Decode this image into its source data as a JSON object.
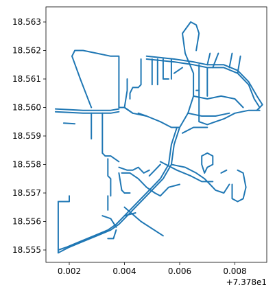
{
  "chart_data": {
    "type": "line",
    "title": "",
    "xlabel": "",
    "ylabel": "",
    "x_offset_label": "+7.378e1",
    "x_ticks": [
      "0.002",
      "0.004",
      "0.006",
      "0.008"
    ],
    "y_ticks": [
      "18.555",
      "18.556",
      "18.557",
      "18.558",
      "18.559",
      "18.560",
      "18.561",
      "18.562",
      "18.563"
    ],
    "grid": false,
    "line_color": "#1f77b4",
    "series": [
      {
        "values": [
          [
            0.0021,
            18.5618
          ],
          [
            0.0022,
            18.562
          ],
          [
            0.0025,
            18.562
          ],
          [
            0.003,
            18.5619
          ],
          [
            0.0035,
            18.5618
          ],
          [
            0.0038,
            18.5618
          ],
          [
            0.0038,
            18.56
          ]
        ]
      },
      {
        "values": [
          [
            0.0021,
            18.5618
          ],
          [
            0.0024,
            18.561
          ],
          [
            0.0026,
            18.5605
          ],
          [
            0.0028,
            18.56
          ]
        ]
      },
      {
        "values": [
          [
            0.0015,
            18.55995
          ],
          [
            0.0025,
            18.5599
          ],
          [
            0.0035,
            18.5599
          ],
          [
            0.0038,
            18.55995
          ]
        ]
      },
      {
        "values": [
          [
            0.0015,
            18.55985
          ],
          [
            0.0025,
            18.5598
          ],
          [
            0.0035,
            18.5598
          ],
          [
            0.0038,
            18.55985
          ]
        ]
      },
      {
        "values": [
          [
            0.0018,
            18.55945
          ],
          [
            0.0022,
            18.55943
          ]
        ]
      },
      {
        "values": [
          [
            0.0028,
            18.5598
          ],
          [
            0.0028,
            18.5589
          ]
        ]
      },
      {
        "values": [
          [
            0.0032,
            18.5598
          ],
          [
            0.0032,
            18.5584
          ],
          [
            0.0033,
            18.5583
          ],
          [
            0.0035,
            18.5583
          ],
          [
            0.0038,
            18.5581
          ]
        ]
      },
      {
        "values": [
          [
            0.0038,
            18.56
          ],
          [
            0.004,
            18.56
          ],
          [
            0.0043,
            18.5598
          ],
          [
            0.0048,
            18.5597
          ],
          [
            0.0053,
            18.5595
          ],
          [
            0.0057,
            18.5593
          ],
          [
            0.006,
            18.5593
          ],
          [
            0.0063,
            18.5598
          ],
          [
            0.0065,
            18.5604
          ],
          [
            0.0065,
            18.5612
          ],
          [
            0.0062,
            18.5619
          ],
          [
            0.0061,
            18.5626
          ],
          [
            0.0064,
            18.563
          ],
          [
            0.0066,
            18.5629
          ],
          [
            0.0067,
            18.5626
          ],
          [
            0.0066,
            18.562
          ]
        ]
      },
      {
        "values": [
          [
            0.004,
            18.56
          ],
          [
            0.0041,
            18.5606
          ],
          [
            0.0041,
            18.561
          ]
        ]
      },
      {
        "values": [
          [
            0.0043,
            18.5598
          ],
          [
            0.004,
            18.56
          ]
        ]
      },
      {
        "values": [
          [
            0.0048,
            18.5597
          ],
          [
            0.0045,
            18.5598
          ]
        ]
      },
      {
        "values": [
          [
            0.006,
            18.5593
          ],
          [
            0.0058,
            18.5587
          ],
          [
            0.0057,
            18.558
          ],
          [
            0.0054,
            18.5575
          ],
          [
            0.0051,
            18.5572
          ],
          [
            0.0047,
            18.5568
          ],
          [
            0.0044,
            18.5565
          ],
          [
            0.0041,
            18.5562
          ],
          [
            0.0038,
            18.5559
          ],
          [
            0.0035,
            18.5557
          ],
          [
            0.003,
            18.5555
          ],
          [
            0.0025,
            18.5553
          ],
          [
            0.002,
            18.5551
          ],
          [
            0.0016,
            18.5549
          ]
        ]
      },
      {
        "values": [
          [
            0.0059,
            18.5593
          ],
          [
            0.0057,
            18.5587
          ],
          [
            0.0056,
            18.558
          ],
          [
            0.0053,
            18.5575
          ],
          [
            0.005,
            18.5572
          ],
          [
            0.0046,
            18.5568
          ],
          [
            0.0043,
            18.5565
          ],
          [
            0.004,
            18.5562
          ],
          [
            0.0037,
            18.5559
          ],
          [
            0.0034,
            18.5557
          ],
          [
            0.0029,
            18.5555
          ],
          [
            0.0024,
            18.5553
          ],
          [
            0.0019,
            18.5551
          ],
          [
            0.0016,
            18.555
          ]
        ]
      },
      {
        "values": [
          [
            0.0016,
            18.5567
          ],
          [
            0.0016,
            18.5549
          ]
        ]
      },
      {
        "values": [
          [
            0.0016,
            18.5567
          ],
          [
            0.002,
            18.5567
          ],
          [
            0.002,
            18.5569
          ]
        ]
      },
      {
        "values": [
          [
            0.0039,
            18.5577
          ],
          [
            0.0042,
            18.5577
          ],
          [
            0.0045,
            18.5575
          ],
          [
            0.0048,
            18.5572
          ],
          [
            0.0051,
            18.557
          ],
          [
            0.0053,
            18.5569
          ],
          [
            0.0056,
            18.5572
          ],
          [
            0.006,
            18.5573
          ]
        ]
      },
      {
        "values": [
          [
            0.0038,
            18.5577
          ],
          [
            0.0039,
            18.5571
          ],
          [
            0.004,
            18.557
          ],
          [
            0.0042,
            18.557
          ]
        ]
      },
      {
        "values": [
          [
            0.0034,
            18.5582
          ],
          [
            0.0034,
            18.5576
          ],
          [
            0.0035,
            18.5575
          ],
          [
            0.0035,
            18.5569
          ]
        ]
      },
      {
        "values": [
          [
            0.0038,
            18.5579
          ],
          [
            0.0041,
            18.5578
          ],
          [
            0.0043,
            18.5578
          ],
          [
            0.0045,
            18.5579
          ],
          [
            0.0047,
            18.5577
          ],
          [
            0.0049,
            18.5578
          ]
        ]
      },
      {
        "values": [
          [
            0.0032,
            18.5562
          ],
          [
            0.0035,
            18.5561
          ],
          [
            0.0037,
            18.5558
          ]
        ]
      },
      {
        "values": [
          [
            0.0034,
            18.5554
          ],
          [
            0.0036,
            18.5554
          ],
          [
            0.0037,
            18.5557
          ]
        ]
      },
      {
        "values": [
          [
            0.0034,
            18.5569
          ],
          [
            0.0034,
            18.5564
          ]
        ]
      },
      {
        "values": [
          [
            0.004,
            18.5565
          ],
          [
            0.0046,
            18.556
          ],
          [
            0.0054,
            18.5555
          ]
        ]
      },
      {
        "values": [
          [
            0.0049,
            18.5576
          ],
          [
            0.0051,
            18.5578
          ],
          [
            0.0053,
            18.558
          ]
        ]
      },
      {
        "values": [
          [
            0.0053,
            18.5581
          ],
          [
            0.0059,
            18.5578
          ],
          [
            0.0064,
            18.5576
          ],
          [
            0.0068,
            18.5574
          ],
          [
            0.0072,
            18.5574
          ]
        ]
      },
      {
        "values": [
          [
            0.0057,
            18.558
          ],
          [
            0.0062,
            18.5579
          ],
          [
            0.0066,
            18.5577
          ],
          [
            0.0069,
            18.5575
          ],
          [
            0.0071,
            18.5573
          ],
          [
            0.0073,
            18.5571
          ],
          [
            0.0076,
            18.557
          ],
          [
            0.0078,
            18.5573
          ]
        ]
      },
      {
        "values": [
          [
            0.0069,
            18.5577
          ],
          [
            0.0068,
            18.558
          ],
          [
            0.0068,
            18.5583
          ],
          [
            0.007,
            18.5584
          ],
          [
            0.0072,
            18.5583
          ],
          [
            0.0072,
            18.558
          ],
          [
            0.007,
            18.5579
          ],
          [
            0.0069,
            18.5577
          ]
        ]
      },
      {
        "values": [
          [
            0.0075,
            18.5577
          ],
          [
            0.0077,
            18.5578
          ]
        ]
      },
      {
        "values": [
          [
            0.0081,
            18.5578
          ],
          [
            0.0083,
            18.5577
          ],
          [
            0.0084,
            18.5572
          ],
          [
            0.0083,
            18.5568
          ],
          [
            0.0081,
            18.5567
          ],
          [
            0.0079,
            18.5568
          ],
          [
            0.0079,
            18.5573
          ]
        ]
      },
      {
        "values": [
          [
            0.0048,
            18.5618
          ],
          [
            0.0058,
            18.5617
          ],
          [
            0.0065,
            18.5616
          ],
          [
            0.007,
            18.5615
          ],
          [
            0.0076,
            18.5615
          ],
          [
            0.0081,
            18.5613
          ],
          [
            0.0085,
            18.5609
          ],
          [
            0.0088,
            18.5604
          ],
          [
            0.009,
            18.5601
          ],
          [
            0.0088,
            18.5599
          ]
        ]
      },
      {
        "values": [
          [
            0.0048,
            18.5617
          ],
          [
            0.0058,
            18.5616
          ],
          [
            0.0065,
            18.5615
          ],
          [
            0.007,
            18.5614
          ],
          [
            0.0076,
            18.5614
          ],
          [
            0.0081,
            18.5612
          ],
          [
            0.0085,
            18.5608
          ],
          [
            0.0087,
            18.5603
          ],
          [
            0.0089,
            18.56
          ],
          [
            0.0088,
            18.5599
          ]
        ]
      },
      {
        "values": [
          [
            0.005,
            18.5617
          ],
          [
            0.005,
            18.5608
          ]
        ]
      },
      {
        "values": [
          [
            0.0052,
            18.5617
          ],
          [
            0.0052,
            18.5608
          ]
        ]
      },
      {
        "values": [
          [
            0.0046,
            18.5617
          ],
          [
            0.0046,
            18.5608
          ],
          [
            0.0045,
            18.5607
          ],
          [
            0.0043,
            18.5607
          ],
          [
            0.0042,
            18.5605
          ],
          [
            0.0042,
            18.5603
          ]
        ]
      },
      {
        "values": [
          [
            0.0054,
            18.5617
          ],
          [
            0.0054,
            18.561
          ],
          [
            0.0056,
            18.561
          ]
        ]
      },
      {
        "values": [
          [
            0.0057,
            18.5617
          ],
          [
            0.0057,
            18.561
          ]
        ]
      },
      {
        "values": [
          [
            0.0058,
            18.5612
          ],
          [
            0.0061,
            18.5614
          ]
        ]
      },
      {
        "values": [
          [
            0.007,
            18.5615
          ],
          [
            0.0071,
            18.5619
          ]
        ]
      },
      {
        "values": [
          [
            0.0072,
            18.5614
          ],
          [
            0.0074,
            18.5619
          ]
        ]
      },
      {
        "values": [
          [
            0.0078,
            18.5614
          ],
          [
            0.0079,
            18.5619
          ]
        ]
      },
      {
        "values": [
          [
            0.0081,
            18.5612
          ],
          [
            0.0082,
            18.5618
          ]
        ]
      },
      {
        "values": [
          [
            0.0067,
            18.5615
          ],
          [
            0.0067,
            18.5606
          ],
          [
            0.0067,
            18.5595
          ],
          [
            0.007,
            18.5594
          ],
          [
            0.0073,
            18.5595
          ],
          [
            0.0076,
            18.5596
          ],
          [
            0.008,
            18.5598
          ],
          [
            0.0085,
            18.5599
          ],
          [
            0.0089,
            18.5599
          ]
        ]
      },
      {
        "values": [
          [
            0.007,
            18.5614
          ],
          [
            0.007,
            18.5604
          ]
        ]
      },
      {
        "values": [
          [
            0.0065,
            18.5604
          ],
          [
            0.007,
            18.5603
          ],
          [
            0.0075,
            18.5604
          ],
          [
            0.008,
            18.5603
          ],
          [
            0.0083,
            18.56
          ]
        ]
      },
      {
        "values": [
          [
            0.0066,
            18.5606
          ],
          [
            0.0067,
            18.5606
          ]
        ]
      },
      {
        "values": [
          [
            0.0063,
            18.5598
          ],
          [
            0.0068,
            18.5597
          ],
          [
            0.0073,
            18.5597
          ],
          [
            0.0078,
            18.5598
          ]
        ]
      },
      {
        "values": [
          [
            0.0061,
            18.5591
          ],
          [
            0.0065,
            18.5593
          ],
          [
            0.007,
            18.5593
          ]
        ]
      },
      {
        "values": [
          [
            0.004,
            18.5562
          ],
          [
            0.0044,
            18.5563
          ]
        ]
      }
    ]
  }
}
